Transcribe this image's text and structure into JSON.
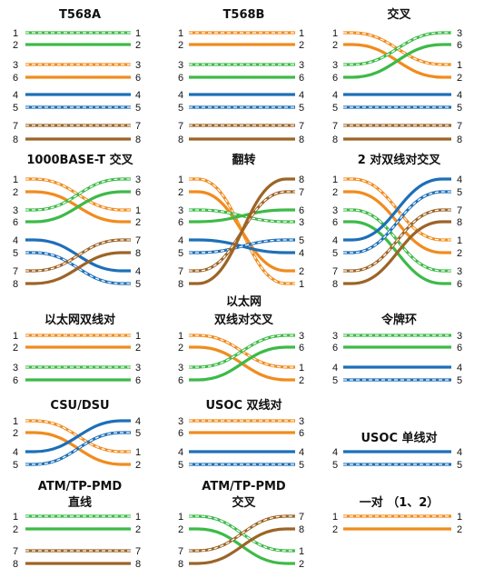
{
  "colors": {
    "green": "#3dba48",
    "orange": "#f08c1e",
    "blue": "#1d6fb8",
    "brown": "#9c6426",
    "stripe": "#ffffff"
  },
  "diagrams": [
    {
      "id": "t568a",
      "title": [
        "T568A"
      ],
      "wires": [
        {
          "l": "1",
          "r": "1",
          "color": "green",
          "striped": true
        },
        {
          "l": "2",
          "r": "2",
          "color": "green",
          "striped": false
        },
        {
          "l": "3",
          "r": "3",
          "color": "orange",
          "striped": true
        },
        {
          "l": "6",
          "r": "6",
          "color": "orange",
          "striped": false
        },
        {
          "l": "4",
          "r": "4",
          "color": "blue",
          "striped": false
        },
        {
          "l": "5",
          "r": "5",
          "color": "blue",
          "striped": true
        },
        {
          "l": "7",
          "r": "7",
          "color": "brown",
          "striped": true
        },
        {
          "l": "8",
          "r": "8",
          "color": "brown",
          "striped": false
        }
      ]
    },
    {
      "id": "t568b",
      "title": [
        "T568B"
      ],
      "wires": [
        {
          "l": "1",
          "r": "1",
          "color": "orange",
          "striped": true
        },
        {
          "l": "2",
          "r": "2",
          "color": "orange",
          "striped": false
        },
        {
          "l": "3",
          "r": "3",
          "color": "green",
          "striped": true
        },
        {
          "l": "6",
          "r": "6",
          "color": "green",
          "striped": false
        },
        {
          "l": "4",
          "r": "4",
          "color": "blue",
          "striped": false
        },
        {
          "l": "5",
          "r": "5",
          "color": "blue",
          "striped": true
        },
        {
          "l": "7",
          "r": "7",
          "color": "brown",
          "striped": true
        },
        {
          "l": "8",
          "r": "8",
          "color": "brown",
          "striped": false
        }
      ]
    },
    {
      "id": "crossover",
      "title": [
        "交叉"
      ],
      "wires": [
        {
          "l": "1",
          "r": "1",
          "color": "orange",
          "striped": true
        },
        {
          "l": "2",
          "r": "2",
          "color": "orange",
          "striped": false
        },
        {
          "l": "3",
          "r": "3",
          "color": "green",
          "striped": true
        },
        {
          "l": "6",
          "r": "6",
          "color": "green",
          "striped": false
        },
        {
          "l": "4",
          "r": "4",
          "color": "blue",
          "striped": false
        },
        {
          "l": "5",
          "r": "5",
          "color": "blue",
          "striped": true
        },
        {
          "l": "7",
          "r": "7",
          "color": "brown",
          "striped": true
        },
        {
          "l": "8",
          "r": "8",
          "color": "brown",
          "striped": false
        }
      ]
    },
    {
      "id": "gigabit-crossover",
      "title": [
        "1000BASE-T 交叉"
      ],
      "wires": [
        {
          "l": "1",
          "r": "1",
          "color": "orange",
          "striped": true
        },
        {
          "l": "2",
          "r": "2",
          "color": "orange",
          "striped": false
        },
        {
          "l": "3",
          "r": "3",
          "color": "green",
          "striped": true
        },
        {
          "l": "6",
          "r": "6",
          "color": "green",
          "striped": false
        },
        {
          "l": "4",
          "r": "4",
          "color": "blue",
          "striped": false
        },
        {
          "l": "5",
          "r": "5",
          "color": "blue",
          "striped": true
        },
        {
          "l": "7",
          "r": "7",
          "color": "brown",
          "striped": true
        },
        {
          "l": "8",
          "r": "8",
          "color": "brown",
          "striped": false
        }
      ]
    },
    {
      "id": "rollover",
      "title": [
        "翻转"
      ],
      "wires": [
        {
          "l": "1",
          "r": "1",
          "color": "orange",
          "striped": true
        },
        {
          "l": "2",
          "r": "2",
          "color": "orange",
          "striped": false
        },
        {
          "l": "3",
          "r": "3",
          "color": "green",
          "striped": true
        },
        {
          "l": "6",
          "r": "6",
          "color": "green",
          "striped": false
        },
        {
          "l": "4",
          "r": "4",
          "color": "blue",
          "striped": false
        },
        {
          "l": "5",
          "r": "5",
          "color": "blue",
          "striped": true
        },
        {
          "l": "7",
          "r": "7",
          "color": "brown",
          "striped": true
        },
        {
          "l": "8",
          "r": "8",
          "color": "brown",
          "striped": false
        }
      ]
    },
    {
      "id": "two-pair-crossover",
      "title": [
        "2 对双线对交叉"
      ],
      "wires": [
        {
          "l": "1",
          "r": "1",
          "color": "orange",
          "striped": true
        },
        {
          "l": "2",
          "r": "2",
          "color": "orange",
          "striped": false
        },
        {
          "l": "3",
          "r": "3",
          "color": "green",
          "striped": true
        },
        {
          "l": "6",
          "r": "6",
          "color": "green",
          "striped": false
        },
        {
          "l": "4",
          "r": "4",
          "color": "blue",
          "striped": false
        },
        {
          "l": "5",
          "r": "5",
          "color": "blue",
          "striped": true
        },
        {
          "l": "7",
          "r": "7",
          "color": "brown",
          "striped": true
        },
        {
          "l": "8",
          "r": "8",
          "color": "brown",
          "striped": false
        }
      ]
    },
    {
      "id": "ethernet-pairs",
      "title": [
        "以太网双线对"
      ],
      "wires": [
        {
          "l": "1",
          "r": "1",
          "color": "orange",
          "striped": true
        },
        {
          "l": "2",
          "r": "2",
          "color": "orange",
          "striped": false
        },
        {
          "l": "3",
          "r": "3",
          "color": "green",
          "striped": true
        },
        {
          "l": "6",
          "r": "6",
          "color": "green",
          "striped": false
        }
      ]
    },
    {
      "id": "ethernet-pairs-crossover",
      "title": [
        "以太网",
        "双线对交叉"
      ],
      "wires": [
        {
          "l": "1",
          "r": "1",
          "color": "orange",
          "striped": true
        },
        {
          "l": "2",
          "r": "2",
          "color": "orange",
          "striped": false
        },
        {
          "l": "3",
          "r": "3",
          "color": "green",
          "striped": true
        },
        {
          "l": "6",
          "r": "6",
          "color": "green",
          "striped": false
        }
      ]
    },
    {
      "id": "token-ring",
      "title": [
        "令牌环"
      ],
      "wires": [
        {
          "l": "3",
          "r": "3",
          "color": "green",
          "striped": true
        },
        {
          "l": "6",
          "r": "6",
          "color": "green",
          "striped": false
        },
        {
          "l": "4",
          "r": "4",
          "color": "blue",
          "striped": false
        },
        {
          "l": "5",
          "r": "5",
          "color": "blue",
          "striped": true
        }
      ]
    },
    {
      "id": "csu-dsu",
      "title": [
        "CSU/DSU"
      ],
      "wires": [
        {
          "l": "1",
          "r": "1",
          "color": "orange",
          "striped": true
        },
        {
          "l": "2",
          "r": "2",
          "color": "orange",
          "striped": false
        },
        {
          "l": "4",
          "r": "4",
          "color": "blue",
          "striped": false
        },
        {
          "l": "5",
          "r": "5",
          "color": "blue",
          "striped": true
        }
      ]
    },
    {
      "id": "usoc-two-pair",
      "title": [
        "USOC 双线对"
      ],
      "wires": [
        {
          "l": "3",
          "r": "3",
          "color": "orange",
          "striped": true
        },
        {
          "l": "6",
          "r": "6",
          "color": "orange",
          "striped": false
        },
        {
          "l": "4",
          "r": "4",
          "color": "blue",
          "striped": false
        },
        {
          "l": "5",
          "r": "5",
          "color": "blue",
          "striped": true
        }
      ]
    },
    {
      "id": "usoc-one-pair",
      "title": [
        "USOC 单线对"
      ],
      "wires": [
        {
          "l": "4",
          "r": "4",
          "color": "blue",
          "striped": false
        },
        {
          "l": "5",
          "r": "5",
          "color": "blue",
          "striped": true
        }
      ]
    },
    {
      "id": "atm-straight",
      "title": [
        "ATM/TP-PMD",
        "直线"
      ],
      "wires": [
        {
          "l": "1",
          "r": "1",
          "color": "green",
          "striped": true
        },
        {
          "l": "2",
          "r": "2",
          "color": "green",
          "striped": false
        },
        {
          "l": "7",
          "r": "7",
          "color": "brown",
          "striped": true
        },
        {
          "l": "8",
          "r": "8",
          "color": "brown",
          "striped": false
        }
      ]
    },
    {
      "id": "atm-crossover",
      "title": [
        "ATM/TP-PMD",
        "交叉"
      ],
      "wires": [
        {
          "l": "1",
          "r": "1",
          "color": "green",
          "striped": true
        },
        {
          "l": "2",
          "r": "2",
          "color": "green",
          "striped": false
        },
        {
          "l": "7",
          "r": "7",
          "color": "brown",
          "striped": true
        },
        {
          "l": "8",
          "r": "8",
          "color": "brown",
          "striped": false
        }
      ]
    },
    {
      "id": "one-pair",
      "title": [
        "一对 （1、2）"
      ],
      "wires": [
        {
          "l": "1",
          "r": "1",
          "color": "orange",
          "striped": true
        },
        {
          "l": "2",
          "r": "2",
          "color": "orange",
          "striped": false
        }
      ]
    }
  ]
}
